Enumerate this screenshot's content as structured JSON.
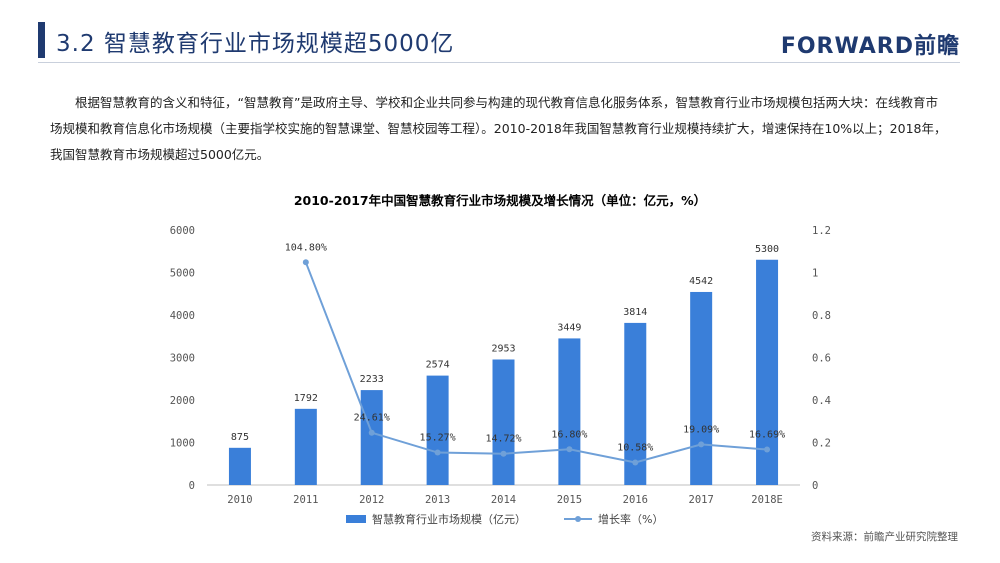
{
  "header": {
    "title": "3.2 智慧教育行业市场规模超5000亿",
    "logo": "FORWARD前瞻"
  },
  "paragraph": "根据智慧教育的含义和特征，“智慧教育”是政府主导、学校和企业共同参与构建的现代教育信息化服务体系，智慧教育行业市场规模包括两大块：在线教育市场规模和教育信息化市场规模（主要指学校实施的智慧课堂、智慧校园等工程）。2010-2018年我国智慧教育行业规模持续扩大，增速保持在10%以上；2018年，我国智慧教育市场规模超过5000亿元。",
  "source": "资料来源：前瞻产业研究院整理",
  "colors": {
    "bar": "#3a7fd9",
    "line": "#6fa0d8",
    "accent": "#1f3a70"
  },
  "chart_data": {
    "type": "bar",
    "title": "2010-2017年中国智慧教育行业市场规模及增长情况（单位：亿元，%）",
    "categories": [
      "2010",
      "2011",
      "2012",
      "2013",
      "2014",
      "2015",
      "2016",
      "2017",
      "2018E"
    ],
    "series": [
      {
        "name": "智慧教育行业市场规模（亿元）",
        "type": "bar",
        "axis": "left",
        "values": [
          875,
          1792,
          2233,
          2574,
          2953,
          3449,
          3814,
          4542,
          5300
        ],
        "labels": [
          "875",
          "1792",
          "2233",
          "2574",
          "2953",
          "3449",
          "3814",
          "4542",
          "5300"
        ]
      },
      {
        "name": "增长率（%）",
        "type": "line",
        "axis": "right",
        "values": [
          null,
          1.048,
          0.2461,
          0.1527,
          0.1472,
          0.168,
          0.1058,
          0.1909,
          0.1669
        ],
        "labels": [
          "",
          "104.80%",
          "24.61%",
          "15.27%",
          "14.72%",
          "16.80%",
          "10.58%",
          "19.09%",
          "16.69%"
        ]
      }
    ],
    "y_left": {
      "min": 0,
      "max": 6000,
      "ticks": [
        "0",
        "1000",
        "2000",
        "3000",
        "4000",
        "5000",
        "6000"
      ]
    },
    "y_right": {
      "min": 0,
      "max": 1.2,
      "ticks": [
        "0",
        "0.2",
        "0.4",
        "0.6",
        "0.8",
        "1",
        "1.2"
      ]
    },
    "grid": false,
    "legend": "bottom"
  }
}
